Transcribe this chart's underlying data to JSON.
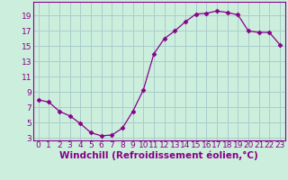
{
  "x": [
    0,
    1,
    2,
    3,
    4,
    5,
    6,
    7,
    8,
    9,
    10,
    11,
    12,
    13,
    14,
    15,
    16,
    17,
    18,
    19,
    20,
    21,
    22,
    23
  ],
  "y": [
    8.0,
    7.7,
    6.5,
    5.9,
    4.9,
    3.7,
    3.3,
    3.4,
    4.3,
    6.5,
    9.3,
    14.0,
    16.0,
    17.0,
    18.2,
    19.2,
    19.3,
    19.6,
    19.4,
    19.1,
    17.0,
    16.8,
    16.8,
    15.2
  ],
  "line_color": "#880088",
  "marker": "D",
  "marker_size": 2.5,
  "bg_color": "#cceedd",
  "grid_color": "#aacccc",
  "xlabel": "Windchill (Refroidissement éolien,°C)",
  "ylim_min": 3,
  "ylim_max": 20,
  "xlim_min": 0,
  "xlim_max": 23,
  "yticks": [
    3,
    5,
    7,
    9,
    11,
    13,
    15,
    17,
    19
  ],
  "xticks": [
    0,
    1,
    2,
    3,
    4,
    5,
    6,
    7,
    8,
    9,
    10,
    11,
    12,
    13,
    14,
    15,
    16,
    17,
    18,
    19,
    20,
    21,
    22,
    23
  ],
  "tick_fontsize": 6.5,
  "xlabel_fontsize": 7.5
}
